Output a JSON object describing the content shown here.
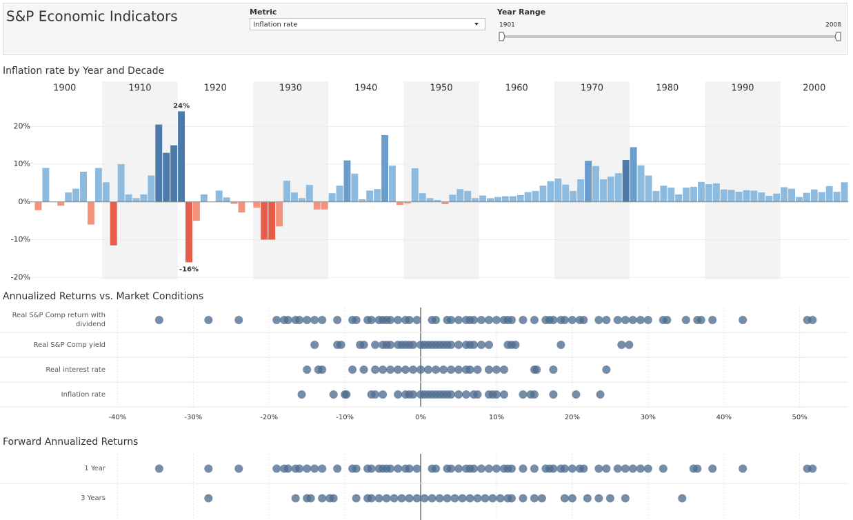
{
  "header": {
    "title": "S&P Economic Indicators",
    "metric_label": "Metric",
    "metric_value": "Inflation rate",
    "range_label": "Year Range",
    "range_start": "1901",
    "range_end": "2008"
  },
  "chart_data": [
    {
      "type": "bar",
      "title": "Inflation rate by Year and Decade",
      "decades": [
        "1900",
        "1910",
        "1920",
        "1930",
        "1940",
        "1950",
        "1960",
        "1970",
        "1980",
        "1990",
        "2000"
      ],
      "x": [
        1901,
        1902,
        1903,
        1904,
        1905,
        1906,
        1907,
        1908,
        1909,
        1910,
        1911,
        1912,
        1913,
        1914,
        1915,
        1916,
        1917,
        1918,
        1919,
        1920,
        1921,
        1922,
        1923,
        1924,
        1925,
        1926,
        1927,
        1928,
        1929,
        1930,
        1931,
        1932,
        1933,
        1934,
        1935,
        1936,
        1937,
        1938,
        1939,
        1940,
        1941,
        1942,
        1943,
        1944,
        1945,
        1946,
        1947,
        1948,
        1949,
        1950,
        1951,
        1952,
        1953,
        1954,
        1955,
        1956,
        1957,
        1958,
        1959,
        1960,
        1961,
        1962,
        1963,
        1964,
        1965,
        1966,
        1967,
        1968,
        1969,
        1970,
        1971,
        1972,
        1973,
        1974,
        1975,
        1976,
        1977,
        1978,
        1979,
        1980,
        1981,
        1982,
        1983,
        1984,
        1985,
        1986,
        1987,
        1988,
        1989,
        1990,
        1991,
        1992,
        1993,
        1994,
        1995,
        1996,
        1997,
        1998,
        1999,
        2000,
        2001,
        2002,
        2003,
        2004,
        2005,
        2006,
        2007,
        2008
      ],
      "values": [
        -2.2,
        9,
        0,
        -1,
        2.5,
        3.5,
        8,
        -6,
        9,
        5.2,
        -11.5,
        10,
        2,
        1,
        2,
        7,
        20.5,
        13,
        15,
        24,
        -16,
        -5,
        2,
        0,
        3,
        1.2,
        -0.5,
        -2.8,
        0,
        -1.5,
        -10,
        -10,
        -6.5,
        5.6,
        2.5,
        1,
        4.5,
        -2,
        -2,
        2.3,
        4.3,
        11,
        7.5,
        0.7,
        3,
        3.4,
        17.7,
        9.6,
        -0.8,
        -0.4,
        8.9,
        2.3,
        1,
        0.5,
        -0.6,
        1.9,
        3.4,
        2.9,
        1,
        1.7,
        1,
        1.3,
        1.5,
        1.5,
        1.8,
        2.6,
        2.9,
        4.3,
        5.5,
        6.2,
        4.6,
        2.9,
        6,
        10.9,
        9.5,
        6,
        6.7,
        7.6,
        11.1,
        14.5,
        9.7,
        7,
        2.9,
        4.3,
        3.8,
        2,
        3.8,
        4,
        5.3,
        4.7,
        4.9,
        3.3,
        3.2,
        2.7,
        3.1,
        3,
        2.5,
        1.6,
        2.2,
        3.9,
        3.5,
        1.3,
        2.4,
        3.3,
        2.6,
        4.2,
        2.7,
        5.2
      ],
      "value_labels": [
        null,
        null,
        null,
        null,
        null,
        null,
        null,
        null,
        null,
        null,
        null,
        null,
        null,
        null,
        null,
        null,
        null,
        null,
        null,
        "24%",
        "-16%",
        null,
        null,
        null,
        null,
        null,
        null,
        null,
        null,
        null,
        null,
        null,
        null,
        null,
        null,
        null,
        null,
        null,
        null,
        null,
        null,
        null,
        null,
        null,
        null,
        null,
        null,
        null,
        null,
        null,
        null,
        null,
        null,
        null,
        null,
        null,
        null,
        null,
        null,
        null,
        null,
        null,
        null,
        null,
        null,
        null,
        null,
        null,
        null,
        null,
        null,
        null,
        null,
        null,
        null,
        null,
        null,
        null,
        null,
        null,
        null,
        null,
        null,
        null,
        null,
        null,
        null,
        null,
        null,
        null,
        null,
        null,
        null,
        null,
        null,
        null,
        null,
        null,
        null,
        null,
        null,
        null,
        null,
        null,
        null,
        null,
        null,
        null
      ],
      "colors": [
        "#f4937c",
        "#8dbbe0",
        "#8dbbe0",
        "#f4937c",
        "#8dbbe0",
        "#8dbbe0",
        "#8dbbe0",
        "#f4937c",
        "#8dbbe0",
        "#8dbbe0",
        "#e85d4a",
        "#8dbbe0",
        "#8dbbe0",
        "#8dbbe0",
        "#8dbbe0",
        "#8dbbe0",
        "#4b7aab",
        "#4b7aab",
        "#4b7aab",
        "#4b7aab",
        "#e85d4a",
        "#f4937c",
        "#8dbbe0",
        "#8dbbe0",
        "#8dbbe0",
        "#8dbbe0",
        "#f4937c",
        "#f4937c",
        "#8dbbe0",
        "#f4937c",
        "#e85d4a",
        "#e85d4a",
        "#f4937c",
        "#8dbbe0",
        "#8dbbe0",
        "#8dbbe0",
        "#8dbbe0",
        "#f4937c",
        "#f4937c",
        "#8dbbe0",
        "#8dbbe0",
        "#6b9dcc",
        "#8dbbe0",
        "#8dbbe0",
        "#8dbbe0",
        "#8dbbe0",
        "#6b9dcc",
        "#8dbbe0",
        "#f4937c",
        "#f4937c",
        "#8dbbe0",
        "#8dbbe0",
        "#8dbbe0",
        "#8dbbe0",
        "#f4937c",
        "#8dbbe0",
        "#8dbbe0",
        "#8dbbe0",
        "#8dbbe0",
        "#8dbbe0",
        "#8dbbe0",
        "#8dbbe0",
        "#8dbbe0",
        "#8dbbe0",
        "#8dbbe0",
        "#8dbbe0",
        "#8dbbe0",
        "#8dbbe0",
        "#8dbbe0",
        "#8dbbe0",
        "#8dbbe0",
        "#8dbbe0",
        "#8dbbe0",
        "#6b9dcc",
        "#8dbbe0",
        "#8dbbe0",
        "#8dbbe0",
        "#8dbbe0",
        "#4b7aab",
        "#6b9dcc",
        "#8dbbe0",
        "#8dbbe0",
        "#8dbbe0",
        "#8dbbe0",
        "#8dbbe0",
        "#8dbbe0",
        "#8dbbe0",
        "#8dbbe0",
        "#8dbbe0",
        "#8dbbe0",
        "#8dbbe0",
        "#8dbbe0",
        "#8dbbe0",
        "#8dbbe0",
        "#8dbbe0",
        "#8dbbe0",
        "#8dbbe0",
        "#8dbbe0",
        "#8dbbe0",
        "#8dbbe0",
        "#8dbbe0",
        "#8dbbe0",
        "#8dbbe0",
        "#8dbbe0",
        "#8dbbe0",
        "#8dbbe0",
        "#8dbbe0",
        "#8dbbe0"
      ],
      "ylim": [
        -20.5,
        27
      ],
      "yticks": [
        {
          "value": -20,
          "label": "-20%"
        },
        {
          "value": -10,
          "label": "-10%"
        },
        {
          "value": 0,
          "label": "0%"
        },
        {
          "value": 10,
          "label": "10%"
        },
        {
          "value": 20,
          "label": "20%"
        }
      ],
      "grid": true
    },
    {
      "type": "dot",
      "title": "Annualized Returns vs. Market Conditions",
      "color": "#4f6d8f",
      "categories": [
        "Real S&P Comp return with dividend",
        "Real S&P Comp yield",
        "Real interest rate",
        "Inflation rate"
      ],
      "values": [
        [
          -34.5,
          -28,
          -24,
          -19,
          -18,
          -17.5,
          -16.5,
          -16,
          -15,
          -14,
          -13,
          -11,
          -9,
          -8.5,
          -7,
          -6.5,
          -5.5,
          -5,
          -4.5,
          -4,
          -3,
          -2,
          -1.5,
          -0.5,
          1.5,
          2,
          3.5,
          4,
          5,
          6,
          6.5,
          7,
          8,
          9,
          10,
          11,
          11.5,
          12,
          13.5,
          15,
          16.5,
          17,
          17.5,
          18.5,
          19,
          20,
          21,
          21.5,
          23.5,
          24.5,
          26,
          27,
          28,
          29,
          30,
          32,
          32.5,
          35,
          36.5,
          37,
          38.5,
          42.5,
          51,
          51.7
        ],
        [
          -14,
          -11,
          -10.5,
          -8,
          -7.5,
          -6,
          -5,
          -4.5,
          -4,
          -3,
          -2.5,
          -2,
          -1.5,
          -1,
          0,
          0.5,
          1,
          1.5,
          2,
          2.5,
          3,
          3.5,
          4,
          5,
          6,
          6.5,
          7,
          8,
          9,
          11.5,
          12,
          12.5,
          18.5,
          26.5,
          27.5
        ],
        [
          -15,
          -13.5,
          -13,
          -9,
          -7.5,
          -6,
          -5,
          -4,
          -3,
          -2,
          -1,
          0,
          1,
          2,
          3,
          4,
          5,
          6,
          6.5,
          7.5,
          9,
          10,
          11,
          15,
          15.3,
          17.5,
          24.5
        ],
        [
          -15.7,
          -11.5,
          -10,
          -9.8,
          -6.5,
          -6,
          -5,
          -3,
          -2,
          -1.5,
          -1,
          0,
          0.5,
          1,
          1.5,
          2,
          2.5,
          3,
          3.5,
          4,
          5,
          6,
          7,
          7.5,
          9,
          9.5,
          10,
          11,
          13.5,
          14.5,
          15,
          17.5,
          20.5,
          23.7
        ]
      ],
      "xlim": [
        -41.4,
        56.4
      ],
      "xticks": [
        {
          "value": -40,
          "label": "-40%"
        },
        {
          "value": -30,
          "label": "-30%"
        },
        {
          "value": -20,
          "label": "-20%"
        },
        {
          "value": -10,
          "label": "-10%"
        },
        {
          "value": 0,
          "label": "0%"
        },
        {
          "value": 10,
          "label": "10%"
        },
        {
          "value": 20,
          "label": "20%"
        },
        {
          "value": 30,
          "label": "30%"
        },
        {
          "value": 40,
          "label": "40%"
        },
        {
          "value": 50,
          "label": "50%"
        }
      ],
      "grid": true
    },
    {
      "type": "dot",
      "title": "Forward Annualized Returns",
      "color": "#4f6d8f",
      "categories": [
        "1 Year",
        "3 Years"
      ],
      "values": [
        [
          -34.5,
          -28,
          -24,
          -19,
          -18,
          -17.5,
          -16.5,
          -16,
          -15,
          -14,
          -13,
          -11,
          -9,
          -8.5,
          -7,
          -6.5,
          -5.5,
          -5,
          -4.5,
          -4,
          -3,
          -2,
          -1.5,
          -0.5,
          1.5,
          2,
          3.5,
          4,
          5,
          6,
          6.5,
          7,
          8,
          9,
          10,
          11,
          11.5,
          12,
          13.5,
          15,
          16.5,
          17,
          17.5,
          18.5,
          19,
          20,
          21,
          21.5,
          23.5,
          24.5,
          26,
          27,
          28,
          29,
          30,
          32,
          36,
          36.5,
          38.5,
          42.5,
          51,
          51.7
        ],
        [
          -28,
          -16.5,
          -15,
          -14.5,
          -13,
          -12,
          -11.5,
          -8.5,
          -7,
          -6.5,
          -5.5,
          -4.5,
          -3.5,
          -2.5,
          -1.5,
          -0.5,
          0.5,
          1.5,
          2.5,
          3.5,
          4.5,
          5.5,
          6.5,
          7.5,
          8.5,
          9.5,
          10.5,
          11.5,
          12,
          13.5,
          15,
          16,
          19,
          20,
          22,
          23.5,
          25,
          27,
          34.5
        ]
      ],
      "xlim": [
        -41.4,
        56.4
      ],
      "xticks": [
        -40,
        -30,
        -20,
        -10,
        0,
        10,
        20,
        30,
        40,
        50
      ],
      "grid": true
    }
  ]
}
